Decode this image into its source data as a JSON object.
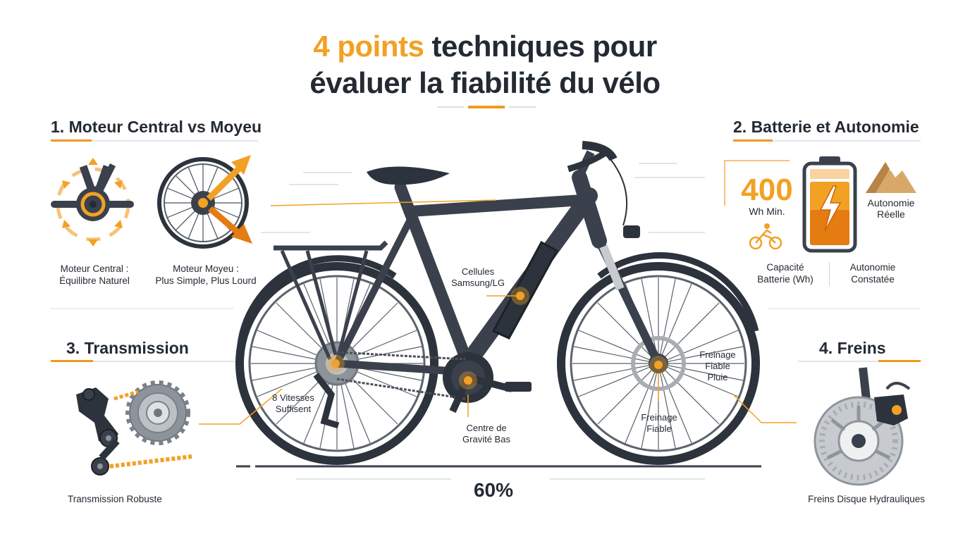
{
  "title": {
    "accent": "4 points",
    "rest": " techniques pour",
    "line2": "évaluer la fiabilité du vélo"
  },
  "sections": {
    "motor": {
      "heading": "1. Moteur Central vs Moyeu",
      "central_caption": "Moteur Central :\nÉquilibre Naturel",
      "hub_caption": "Moteur Moyeu :\nPlus Simple, Plus Lourd"
    },
    "battery": {
      "heading": "2. Batterie et Autonomie",
      "capacity_value": "400",
      "capacity_unit": "Wh Min.",
      "range_label": "Autonomie\nRéelle",
      "capacity_caption": "Capacité\nBatterie (Wh)",
      "range_caption": "Autonomie\nConstatée"
    },
    "transmission": {
      "heading": "3. Transmission",
      "caption": "Transmission Robuste"
    },
    "brakes": {
      "heading": "4. Freins",
      "caption": "Freins Disque Hydrauliques"
    }
  },
  "callouts": {
    "cells": "Cellules\nSamsung/LG",
    "gears": "8 Vitesses\nSuffisent",
    "center": "Centre de\nGravité Bas",
    "brake_rain": "Freinage\nFiable\nPluie",
    "brake": "Freinage\nFiable"
  },
  "bottom_value": "60%",
  "colors": {
    "accent": "#f2a124",
    "accent_dark": "#e47c12",
    "frame": "#3a414c",
    "ink": "#232a33"
  }
}
